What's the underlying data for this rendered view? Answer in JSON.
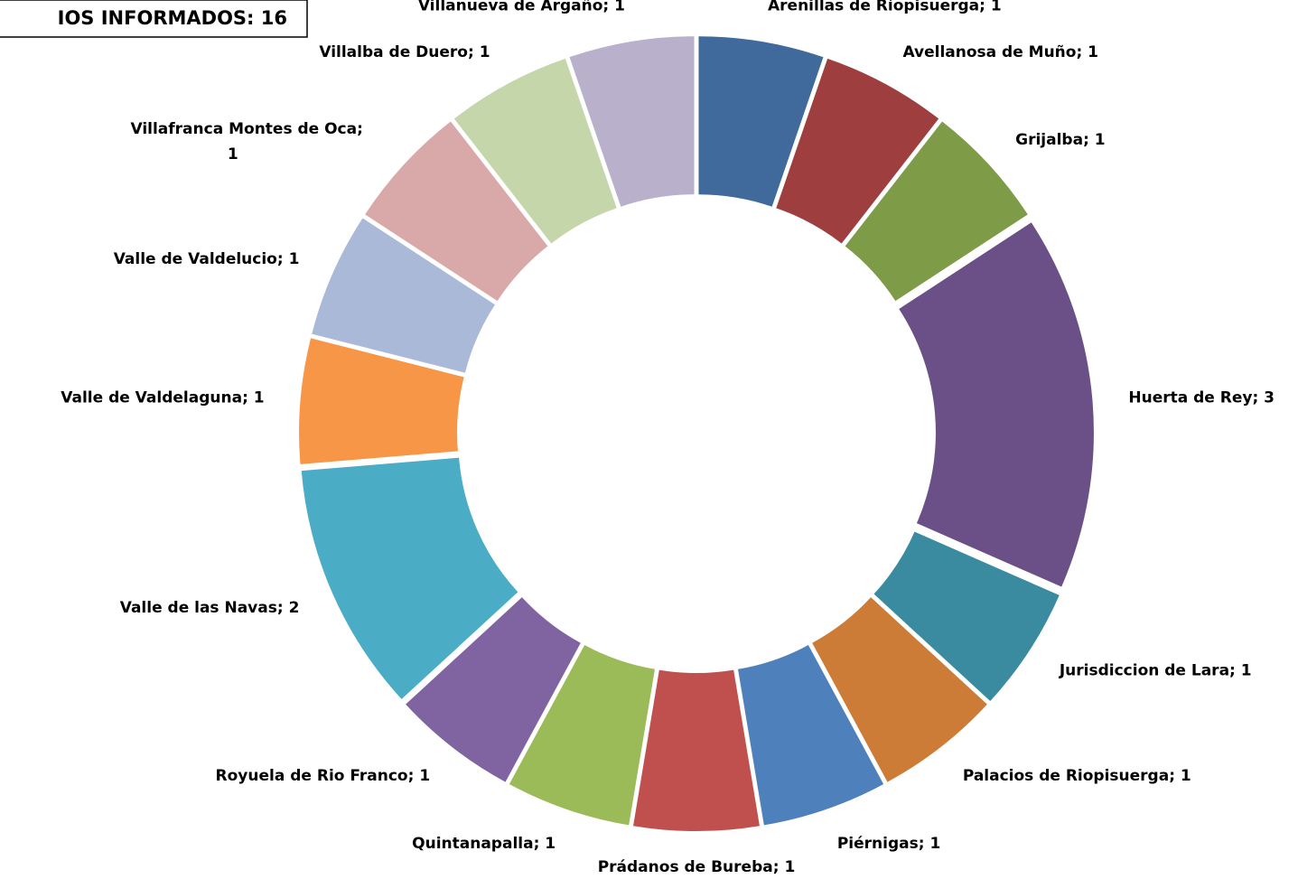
{
  "chart_data": {
    "type": "doughnut",
    "title": "IOS INFORMADOS: 16",
    "categories": [
      "Arenillas de Ríopisuerga",
      "Avellanosa de Muño",
      "Grijalba",
      "Huerta de Rey",
      "Jurisdiccion de Lara",
      "Palacios de Riopisuerga",
      "Piérnigas",
      "Prádanos de Bureba",
      "Quintanapalla",
      "Royuela de Rio Franco",
      "Valle de las Navas",
      "Valle de Valdelaguna",
      "Valle de Valdelucio",
      "Villafranca Montes de Oca",
      "Villalba de Duero",
      "Villanueva de Argaño"
    ],
    "values": [
      1,
      1,
      1,
      3,
      1,
      1,
      1,
      1,
      1,
      1,
      2,
      1,
      1,
      1,
      1,
      1
    ],
    "colors": [
      "#3f6a9b",
      "#9e3e3e",
      "#7e9b48",
      "#6a5086",
      "#3a8ba0",
      "#cc7c37",
      "#4e80bc",
      "#c0504d",
      "#9bbb59",
      "#8064a2",
      "#4bacc6",
      "#f79646",
      "#a9b9d7",
      "#d9a8a8",
      "#c5d6aa",
      "#b9b0cc"
    ]
  }
}
